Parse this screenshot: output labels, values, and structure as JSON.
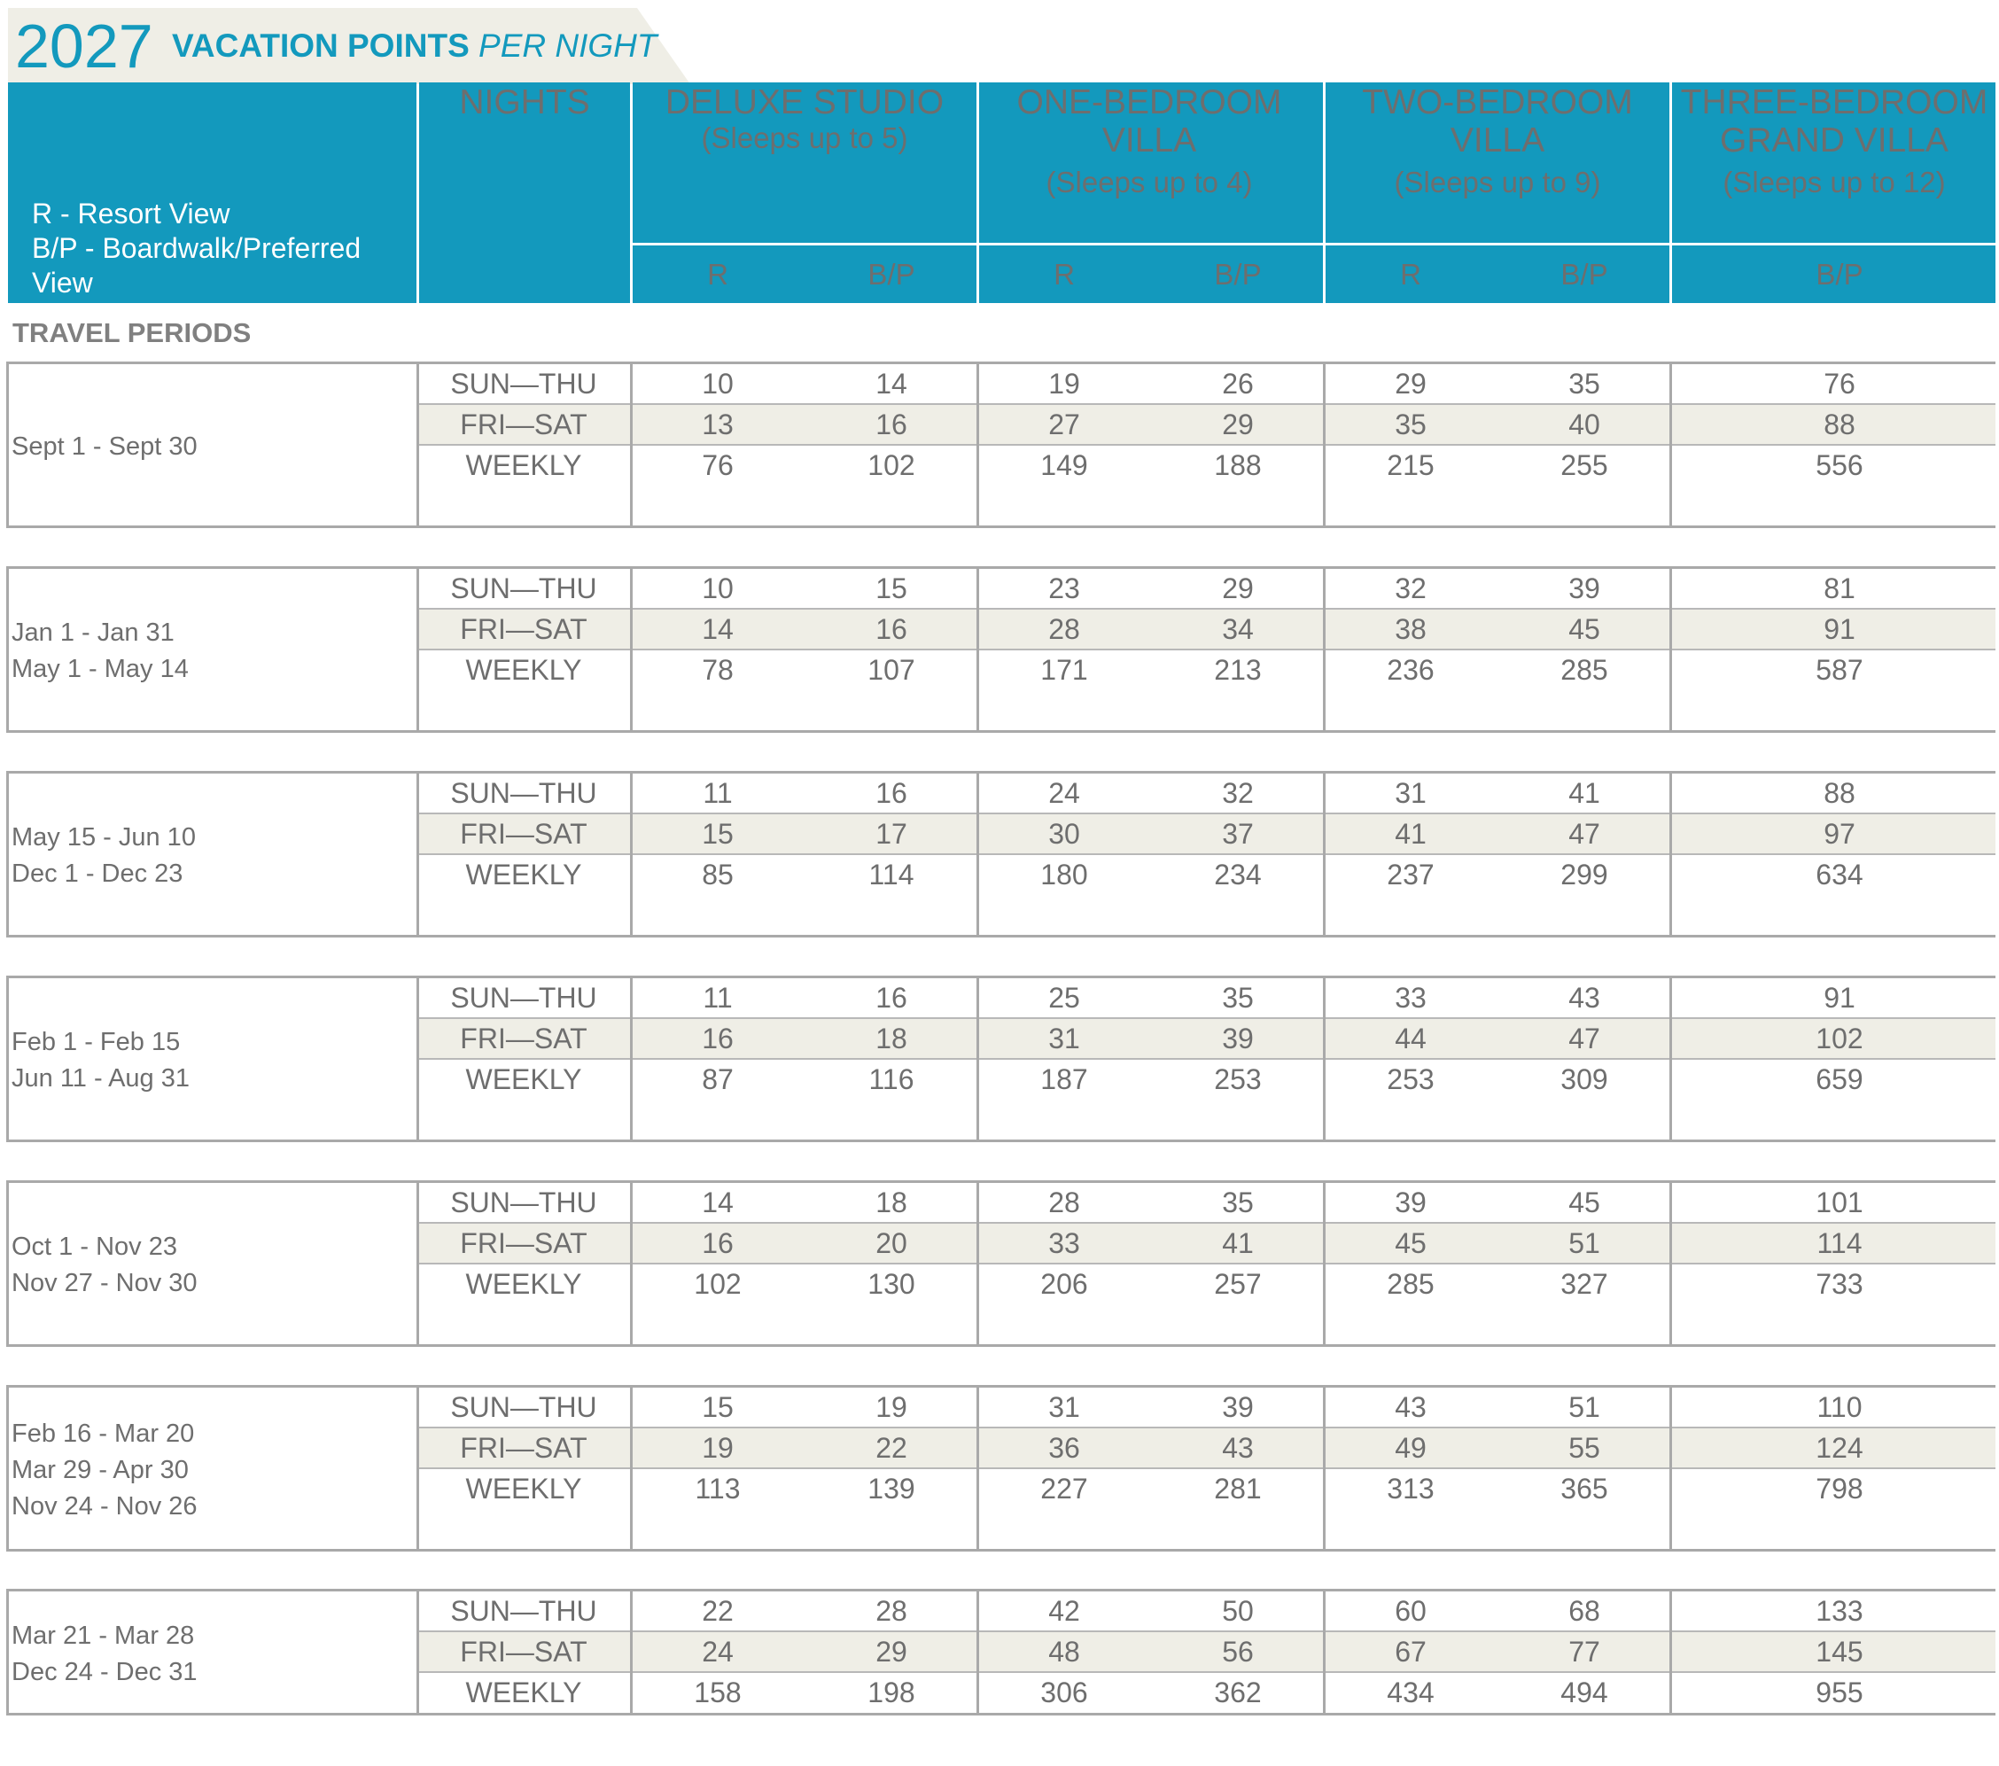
{
  "title": {
    "year": "2027",
    "strong": "VACATION POINTS",
    "light": " PER NIGHT"
  },
  "legend": [
    "R - Resort View",
    "B/P - Boardwalk/Preferred",
    "View"
  ],
  "header": {
    "nights": "NIGHTS",
    "rooms": [
      {
        "name1": "DELUXE STUDIO",
        "name2": "",
        "sleeps": "(Sleeps up to 5)"
      },
      {
        "name1": "ONE-BEDROOM",
        "name2": "VILLA",
        "sleeps": "(Sleeps up to 4)"
      },
      {
        "name1": "TWO-BEDROOM",
        "name2": "VILLA",
        "sleeps": "(Sleeps up to 9)"
      },
      {
        "name1": "THREE-BEDROOM",
        "name2": "GRAND VILLA",
        "sleeps": "(Sleeps up to 12)"
      }
    ],
    "views": [
      "R",
      "B/P",
      "R",
      "B/P",
      "R",
      "B/P",
      "B/P"
    ]
  },
  "travel_periods_label": "TRAVEL PERIODS",
  "night_labels": [
    "SUN—THU",
    "FRI—SAT",
    "WEEKLY"
  ],
  "periods": [
    {
      "dates": [
        "Sept 1 - Sept 30"
      ],
      "rows": [
        [
          "10",
          "14",
          "19",
          "26",
          "29",
          "35",
          "76"
        ],
        [
          "13",
          "16",
          "27",
          "29",
          "35",
          "40",
          "88"
        ],
        [
          "76",
          "102",
          "149",
          "188",
          "215",
          "255",
          "556"
        ]
      ]
    },
    {
      "dates": [
        "Jan 1 - Jan 31",
        "May 1 - May 14"
      ],
      "rows": [
        [
          "10",
          "15",
          "23",
          "29",
          "32",
          "39",
          "81"
        ],
        [
          "14",
          "16",
          "28",
          "34",
          "38",
          "45",
          "91"
        ],
        [
          "78",
          "107",
          "171",
          "213",
          "236",
          "285",
          "587"
        ]
      ]
    },
    {
      "dates": [
        "May 15 - Jun 10",
        "Dec 1 - Dec 23"
      ],
      "rows": [
        [
          "11",
          "16",
          "24",
          "32",
          "31",
          "41",
          "88"
        ],
        [
          "15",
          "17",
          "30",
          "37",
          "41",
          "47",
          "97"
        ],
        [
          "85",
          "114",
          "180",
          "234",
          "237",
          "299",
          "634"
        ]
      ]
    },
    {
      "dates": [
        "Feb 1 - Feb 15",
        "Jun 11 - Aug 31"
      ],
      "rows": [
        [
          "11",
          "16",
          "25",
          "35",
          "33",
          "43",
          "91"
        ],
        [
          "16",
          "18",
          "31",
          "39",
          "44",
          "47",
          "102"
        ],
        [
          "87",
          "116",
          "187",
          "253",
          "253",
          "309",
          "659"
        ]
      ]
    },
    {
      "dates": [
        "Oct 1 - Nov 23",
        "Nov 27 - Nov 30"
      ],
      "rows": [
        [
          "14",
          "18",
          "28",
          "35",
          "39",
          "45",
          "101"
        ],
        [
          "16",
          "20",
          "33",
          "41",
          "45",
          "51",
          "114"
        ],
        [
          "102",
          "130",
          "206",
          "257",
          "285",
          "327",
          "733"
        ]
      ]
    },
    {
      "dates": [
        "Feb 16 - Mar 20",
        "Mar 29 - Apr 30",
        "Nov 24 - Nov 26"
      ],
      "rows": [
        [
          "15",
          "19",
          "31",
          "39",
          "43",
          "51",
          "110"
        ],
        [
          "19",
          "22",
          "36",
          "43",
          "49",
          "55",
          "124"
        ],
        [
          "113",
          "139",
          "227",
          "281",
          "313",
          "365",
          "798"
        ]
      ]
    },
    {
      "dates": [
        "Mar 21 - Mar 28",
        "Dec 24 - Dec 31"
      ],
      "rows": [
        [
          "22",
          "28",
          "42",
          "50",
          "60",
          "68",
          "133"
        ],
        [
          "24",
          "29",
          "48",
          "56",
          "67",
          "77",
          "145"
        ],
        [
          "158",
          "198",
          "306",
          "362",
          "434",
          "494",
          "955"
        ]
      ]
    }
  ]
}
